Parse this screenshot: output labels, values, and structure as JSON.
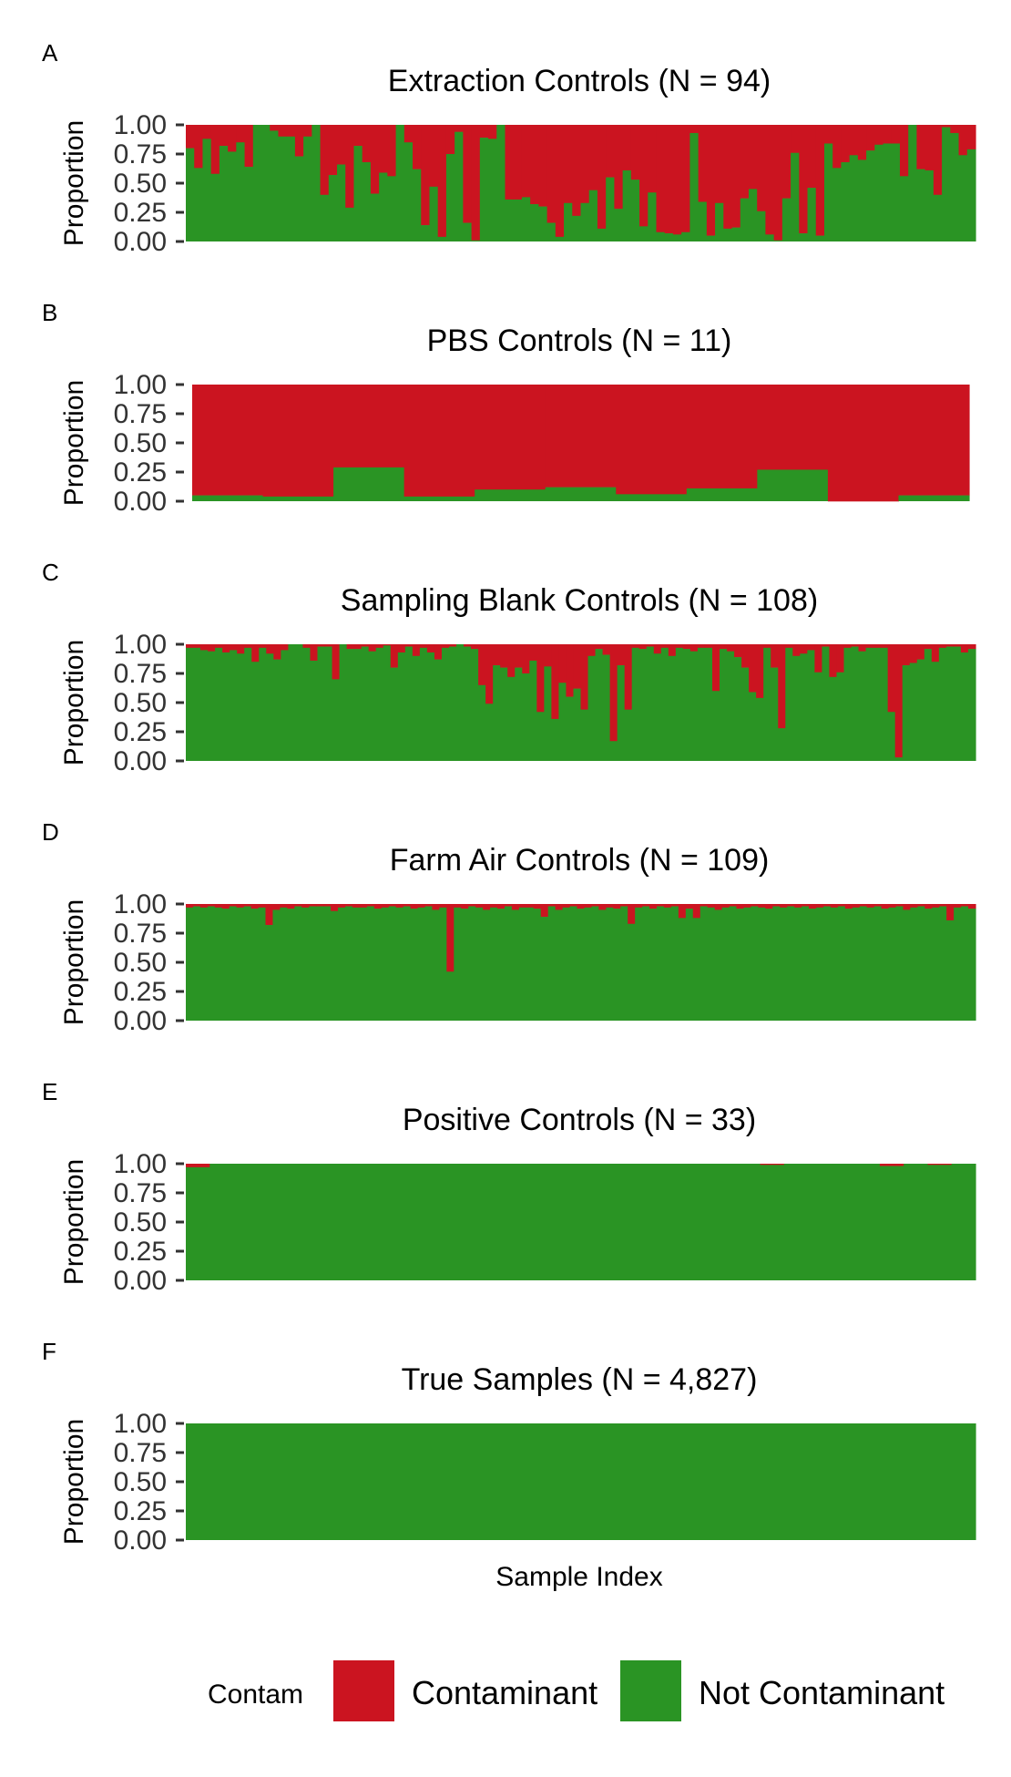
{
  "colors": {
    "contaminant": "#CB1420",
    "not_contaminant": "#2A9424"
  },
  "legend": {
    "title": "Contam",
    "items": [
      {
        "label": "Contaminant",
        "color": "#CB1420"
      },
      {
        "label": "Not Contaminant",
        "color": "#2A9424"
      }
    ]
  },
  "x_axis_label": "Sample Index",
  "y_axis_label": "Proportion",
  "y_ticks": [
    "0.00",
    "0.25",
    "0.50",
    "0.75",
    "1.00"
  ],
  "chart_data": [
    {
      "type": "bar",
      "stacked": true,
      "panel": "A",
      "title": "Extraction Controls (N = 94)",
      "xlabel": "",
      "ylabel": "Proportion",
      "ylim": [
        0,
        1
      ],
      "series_names": [
        "Not Contaminant",
        "Contaminant"
      ],
      "values": [
        0.8,
        0.63,
        0.88,
        0.58,
        0.82,
        0.77,
        0.85,
        0.64,
        1.0,
        1.0,
        0.95,
        0.9,
        0.9,
        0.73,
        0.9,
        1.0,
        0.4,
        0.57,
        0.66,
        0.29,
        0.82,
        0.68,
        0.41,
        0.59,
        0.56,
        1.0,
        0.85,
        0.62,
        0.14,
        0.47,
        0.04,
        0.75,
        0.94,
        0.16,
        0.01,
        0.89,
        0.88,
        1.0,
        0.36,
        0.36,
        0.38,
        0.32,
        0.3,
        0.16,
        0.04,
        0.33,
        0.22,
        0.33,
        0.44,
        0.11,
        0.55,
        0.28,
        0.61,
        0.53,
        0.13,
        0.42,
        0.08,
        0.07,
        0.06,
        0.08,
        0.93,
        0.34,
        0.05,
        0.33,
        0.11,
        0.12,
        0.37,
        0.45,
        0.26,
        0.06,
        0.01,
        0.37,
        0.76,
        0.07,
        0.46,
        0.05,
        0.84,
        0.63,
        0.68,
        0.74,
        0.7,
        0.78,
        0.83,
        0.84,
        0.84,
        0.56,
        1.0,
        0.62,
        0.61,
        0.4,
        0.98,
        0.93,
        0.74,
        0.79
      ]
    },
    {
      "type": "bar",
      "stacked": true,
      "panel": "B",
      "title": "PBS Controls (N = 11)",
      "xlabel": "",
      "ylabel": "Proportion",
      "ylim": [
        0,
        1
      ],
      "series_names": [
        "Not Contaminant",
        "Contaminant"
      ],
      "values": [
        0.05,
        0.04,
        0.29,
        0.04,
        0.1,
        0.12,
        0.06,
        0.11,
        0.27,
        0.0,
        0.05
      ]
    },
    {
      "type": "bar",
      "stacked": true,
      "panel": "C",
      "title": "Sampling Blank Controls (N = 108)",
      "xlabel": "",
      "ylabel": "Proportion",
      "ylim": [
        0,
        1
      ],
      "series_names": [
        "Not Contaminant",
        "Contaminant"
      ],
      "values": [
        0.97,
        0.97,
        0.95,
        0.94,
        0.97,
        0.93,
        0.95,
        0.92,
        0.97,
        0.85,
        0.97,
        0.92,
        0.87,
        0.95,
        1.0,
        1.0,
        0.97,
        0.86,
        0.98,
        0.98,
        0.7,
        1.0,
        0.96,
        0.96,
        0.98,
        0.94,
        0.97,
        0.99,
        0.8,
        0.93,
        0.98,
        0.9,
        0.97,
        0.93,
        0.87,
        0.97,
        0.98,
        1.0,
        0.98,
        0.96,
        0.65,
        0.49,
        0.82,
        0.8,
        0.72,
        0.8,
        0.75,
        0.86,
        0.42,
        0.81,
        0.36,
        0.67,
        0.55,
        0.62,
        0.44,
        0.9,
        0.96,
        0.91,
        0.17,
        0.82,
        0.44,
        0.97,
        0.96,
        0.98,
        0.92,
        0.97,
        0.9,
        0.97,
        0.96,
        0.94,
        0.97,
        0.97,
        0.6,
        0.96,
        0.94,
        0.89,
        0.8,
        0.59,
        0.54,
        0.97,
        0.8,
        0.28,
        0.97,
        0.9,
        0.92,
        0.95,
        0.76,
        0.98,
        0.72,
        0.76,
        0.97,
        0.98,
        0.94,
        0.97,
        0.97,
        0.97,
        0.42,
        0.03,
        0.82,
        0.84,
        0.87,
        0.96,
        0.85,
        0.97,
        0.98,
        0.98,
        0.93,
        0.96
      ]
    },
    {
      "type": "bar",
      "stacked": true,
      "panel": "D",
      "title": "Farm Air Controls (N = 109)",
      "xlabel": "",
      "ylabel": "Proportion",
      "ylim": [
        0,
        1
      ],
      "series_names": [
        "Not Contaminant",
        "Contaminant"
      ],
      "values": [
        0.97,
        0.98,
        0.97,
        0.98,
        0.97,
        0.96,
        0.98,
        0.97,
        0.98,
        0.96,
        0.97,
        0.82,
        0.95,
        0.97,
        0.96,
        0.98,
        0.97,
        0.98,
        0.98,
        0.98,
        0.94,
        0.97,
        0.98,
        0.97,
        0.97,
        0.98,
        0.96,
        0.97,
        0.98,
        0.97,
        0.98,
        0.96,
        0.97,
        0.98,
        0.95,
        0.97,
        0.42,
        0.97,
        0.96,
        0.98,
        0.97,
        0.95,
        0.97,
        0.96,
        0.98,
        0.95,
        0.97,
        0.97,
        0.96,
        0.89,
        0.98,
        0.95,
        0.97,
        0.98,
        0.96,
        0.97,
        0.98,
        0.95,
        0.97,
        0.96,
        0.98,
        0.83,
        0.97,
        0.98,
        0.96,
        0.98,
        0.97,
        0.98,
        0.88,
        0.96,
        0.88,
        0.98,
        0.97,
        0.95,
        0.97,
        0.98,
        0.96,
        0.97,
        0.98,
        0.97,
        0.96,
        0.98,
        0.97,
        0.98,
        0.97,
        0.98,
        0.96,
        0.97,
        0.98,
        0.97,
        0.98,
        0.96,
        0.97,
        0.98,
        0.97,
        0.98,
        0.96,
        0.97,
        0.98,
        0.95,
        0.97,
        0.98,
        0.96,
        0.97,
        0.98,
        0.86,
        0.97,
        0.98,
        0.96
      ]
    },
    {
      "type": "bar",
      "stacked": true,
      "panel": "E",
      "title": "Positive Controls (N = 33)",
      "xlabel": "",
      "ylabel": "Proportion",
      "ylim": [
        0,
        1
      ],
      "series_names": [
        "Not Contaminant",
        "Contaminant"
      ],
      "values": [
        0.97,
        1.0,
        1.0,
        1.0,
        1.0,
        1.0,
        1.0,
        1.0,
        1.0,
        1.0,
        1.0,
        1.0,
        1.0,
        1.0,
        1.0,
        1.0,
        1.0,
        1.0,
        1.0,
        1.0,
        1.0,
        1.0,
        1.0,
        1.0,
        0.99,
        1.0,
        1.0,
        1.0,
        1.0,
        0.98,
        1.0,
        0.99,
        1.0
      ]
    },
    {
      "type": "bar",
      "stacked": true,
      "panel": "F",
      "title": "True Samples (N = 4,827)",
      "xlabel": "Sample Index",
      "ylabel": "Proportion",
      "ylim": [
        0,
        1
      ],
      "series_names": [
        "Not Contaminant",
        "Contaminant"
      ],
      "values": [
        1.0,
        1.0,
        1.0,
        1.0,
        1.0,
        1.0,
        1.0,
        1.0,
        1.0,
        1.0,
        1.0,
        1.0,
        1.0,
        1.0,
        1.0,
        1.0,
        1.0,
        1.0,
        1.0,
        1.0,
        1.0,
        1.0,
        1.0,
        1.0,
        1.0,
        1.0,
        1.0,
        1.0,
        1.0,
        1.0,
        1.0,
        1.0,
        1.0,
        1.0,
        1.0,
        1.0,
        1.0,
        1.0,
        1.0,
        1.0,
        1.0,
        1.0,
        1.0,
        1.0,
        1.0,
        1.0,
        1.0,
        1.0,
        1.0,
        1.0,
        1.0,
        1.0,
        1.0,
        1.0,
        1.0,
        1.0,
        1.0,
        1.0,
        1.0,
        1.0
      ]
    }
  ]
}
